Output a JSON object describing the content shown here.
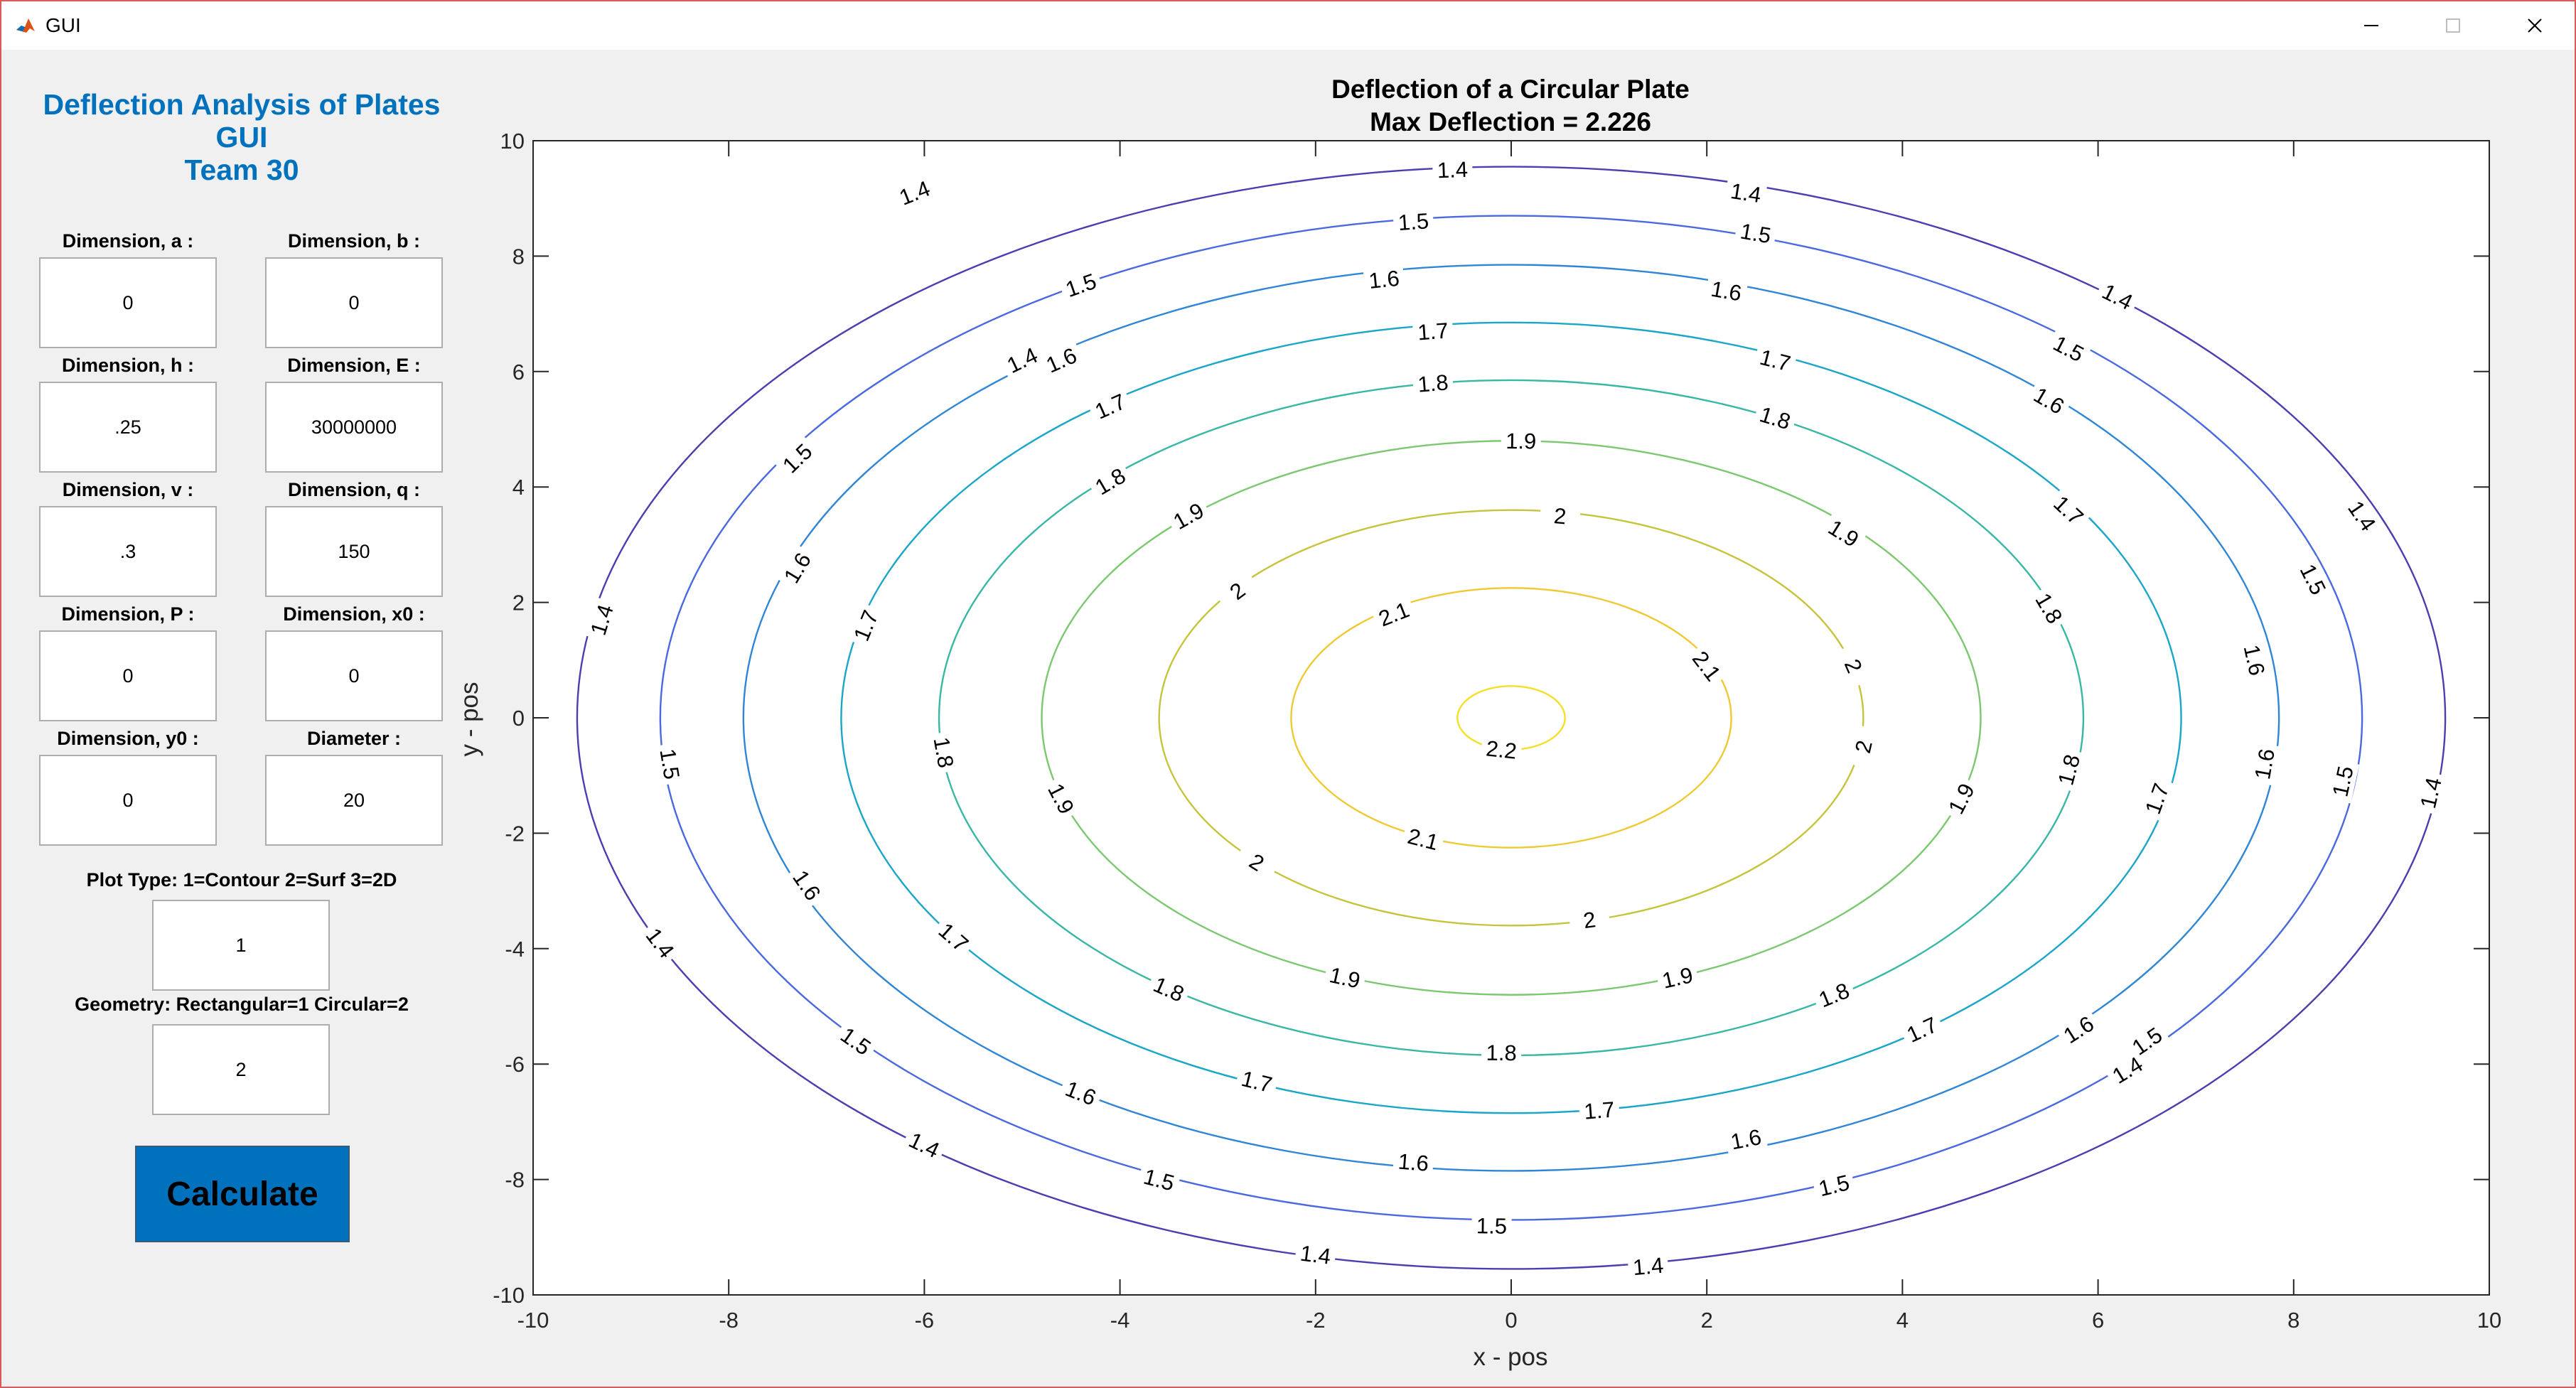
{
  "window": {
    "title": "GUI"
  },
  "panel": {
    "title_lines": [
      "Deflection Analysis of Plates",
      "GUI",
      "Team 30"
    ],
    "fields": [
      {
        "label": "Dimension, a :",
        "value": "0"
      },
      {
        "label": "Dimension, b :",
        "value": "0"
      },
      {
        "label": "Dimension, h :",
        "value": ".25"
      },
      {
        "label": "Dimension, E :",
        "value": "30000000"
      },
      {
        "label": "Dimension, v :",
        "value": ".3"
      },
      {
        "label": "Dimension, q :",
        "value": "150"
      },
      {
        "label": "Dimension, P :",
        "value": "0"
      },
      {
        "label": "Dimension, x0 :",
        "value": "0"
      },
      {
        "label": "Dimension, y0 :",
        "value": "0"
      },
      {
        "label": "Diameter :",
        "value": "20"
      }
    ],
    "plot_type": {
      "label": "Plot Type: 1=Contour  2=Surf  3=2D",
      "value": "1"
    },
    "geometry": {
      "label": "Geometry: Rectangular=1 Circular=2",
      "value": "2"
    },
    "calculate_label": "Calculate"
  },
  "chart_data": {
    "type": "contour",
    "title": "Deflection of a Circular Plate",
    "subtitle": "Max Deflection = 2.226",
    "xlabel": "x - pos",
    "ylabel": "y - pos",
    "xlim": [
      -10,
      10
    ],
    "ylim": [
      -10,
      10
    ],
    "xticks": [
      -10,
      -8,
      -6,
      -4,
      -2,
      0,
      2,
      4,
      6,
      8,
      10
    ],
    "yticks": [
      -10,
      -8,
      -6,
      -4,
      -2,
      0,
      2,
      4,
      6,
      8,
      10
    ],
    "colormap": "parula",
    "levels": [
      {
        "value": 1.4,
        "rx": 9.55,
        "ry": 9.55,
        "color": "#4a3fb0",
        "labels": [
          {
            "x": -6.1,
            "y": 9.1
          },
          {
            "x": -5.0,
            "y": 6.2
          },
          {
            "x": -9.3,
            "y": 1.7
          },
          {
            "x": -8.7,
            "y": -3.9
          },
          {
            "x": -6.0,
            "y": -7.4
          },
          {
            "x": -2.0,
            "y": -9.3
          },
          {
            "x": 1.4,
            "y": -9.5
          },
          {
            "x": 6.3,
            "y": -6.1
          },
          {
            "x": 9.4,
            "y": -1.3
          },
          {
            "x": 8.7,
            "y": 3.5
          },
          {
            "x": 6.2,
            "y": 7.3
          },
          {
            "x": 2.4,
            "y": 9.1
          },
          {
            "x": -0.6,
            "y": 9.5
          }
        ]
      },
      {
        "value": 1.5,
        "rx": 8.7,
        "ry": 8.7,
        "color": "#4a69e0",
        "labels": [
          {
            "x": -4.4,
            "y": 7.5
          },
          {
            "x": -7.3,
            "y": 4.5
          },
          {
            "x": -8.6,
            "y": -0.8
          },
          {
            "x": -6.7,
            "y": -5.6
          },
          {
            "x": -3.6,
            "y": -8.0
          },
          {
            "x": -0.2,
            "y": -8.8
          },
          {
            "x": 3.3,
            "y": -8.1
          },
          {
            "x": 6.5,
            "y": -5.6
          },
          {
            "x": 8.5,
            "y": -1.1
          },
          {
            "x": 8.2,
            "y": 2.4
          },
          {
            "x": 5.7,
            "y": 6.4
          },
          {
            "x": 2.5,
            "y": 8.4
          },
          {
            "x": -1.0,
            "y": 8.6
          }
        ]
      },
      {
        "value": 1.6,
        "rx": 7.85,
        "ry": 7.85,
        "color": "#2f86d6",
        "labels": [
          {
            "x": -4.6,
            "y": 6.2
          },
          {
            "x": -7.3,
            "y": 2.6
          },
          {
            "x": -7.2,
            "y": -2.9
          },
          {
            "x": -4.4,
            "y": -6.5
          },
          {
            "x": -1.0,
            "y": -7.7
          },
          {
            "x": 2.4,
            "y": -7.3
          },
          {
            "x": 5.8,
            "y": -5.4
          },
          {
            "x": 7.7,
            "y": -0.8
          },
          {
            "x": 7.6,
            "y": 1.0
          },
          {
            "x": 5.5,
            "y": 5.5
          },
          {
            "x": 2.2,
            "y": 7.4
          },
          {
            "x": -1.3,
            "y": 7.6
          }
        ]
      },
      {
        "value": 1.7,
        "rx": 6.85,
        "ry": 6.85,
        "color": "#1aa6c8",
        "labels": [
          {
            "x": -4.1,
            "y": 5.4
          },
          {
            "x": -6.6,
            "y": 1.6
          },
          {
            "x": -5.7,
            "y": -3.8
          },
          {
            "x": -2.6,
            "y": -6.3
          },
          {
            "x": 0.9,
            "y": -6.8
          },
          {
            "x": 4.2,
            "y": -5.4
          },
          {
            "x": 6.6,
            "y": -1.4
          },
          {
            "x": 5.7,
            "y": 3.6
          },
          {
            "x": 2.7,
            "y": 6.2
          },
          {
            "x": -0.8,
            "y": 6.7
          }
        ]
      },
      {
        "value": 1.8,
        "rx": 5.85,
        "ry": 5.85,
        "color": "#38b8a4",
        "labels": [
          {
            "x": -4.1,
            "y": 4.1
          },
          {
            "x": -5.8,
            "y": -0.6
          },
          {
            "x": -3.5,
            "y": -4.7
          },
          {
            "x": -0.1,
            "y": -5.8
          },
          {
            "x": 3.3,
            "y": -4.8
          },
          {
            "x": 5.7,
            "y": -0.9
          },
          {
            "x": 5.5,
            "y": 1.9
          },
          {
            "x": 2.7,
            "y": 5.2
          },
          {
            "x": -0.8,
            "y": 5.8
          }
        ]
      },
      {
        "value": 1.9,
        "rx": 4.8,
        "ry": 4.8,
        "color": "#7cc870",
        "labels": [
          {
            "x": -3.3,
            "y": 3.5
          },
          {
            "x": -4.6,
            "y": -1.4
          },
          {
            "x": -1.7,
            "y": -4.5
          },
          {
            "x": 1.7,
            "y": -4.5
          },
          {
            "x": 4.6,
            "y": -1.4
          },
          {
            "x": 3.4,
            "y": 3.2
          },
          {
            "x": 0.1,
            "y": 4.8
          }
        ]
      },
      {
        "value": 2.0,
        "rx": 3.6,
        "ry": 3.6,
        "color": "#c6c43c",
        "labels": [
          {
            "x": -2.8,
            "y": 2.2
          },
          {
            "x": -2.6,
            "y": -2.5
          },
          {
            "x": 0.8,
            "y": -3.5
          },
          {
            "x": 3.5,
            "y": 0.9
          },
          {
            "x": 3.6,
            "y": -0.5
          },
          {
            "x": 0.5,
            "y": 3.5
          }
        ]
      },
      {
        "value": 2.1,
        "rx": 2.25,
        "ry": 2.25,
        "color": "#efc934",
        "labels": [
          {
            "x": -1.2,
            "y": 1.8
          },
          {
            "x": -0.9,
            "y": -2.1
          },
          {
            "x": 2.0,
            "y": 0.9
          }
        ]
      },
      {
        "value": 2.2,
        "rx": 0.55,
        "ry": 0.55,
        "color": "#f4e02a",
        "labels": [
          {
            "x": -0.1,
            "y": -0.55
          }
        ]
      }
    ]
  }
}
